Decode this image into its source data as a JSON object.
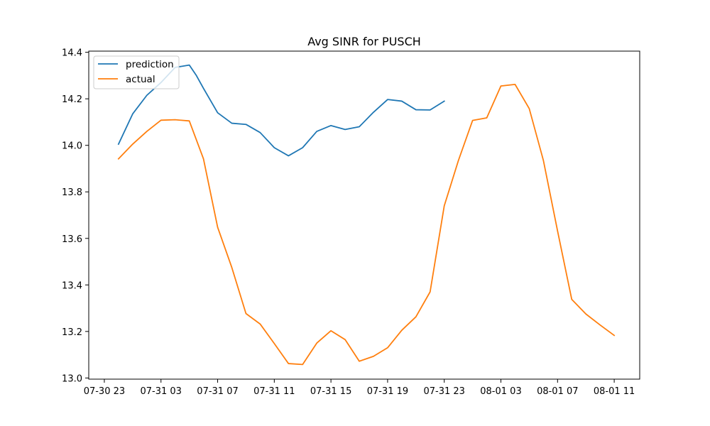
{
  "chart_data": {
    "type": "line",
    "title": "Avg SINR for PUSCH",
    "xlabel": "",
    "ylabel": "",
    "x_unit": "hours",
    "x_start": "2023-07-30 23:00",
    "x_ticks": [
      {
        "value": 0,
        "label": "07-30 23"
      },
      {
        "value": 4,
        "label": "07-31 03"
      },
      {
        "value": 8,
        "label": "07-31 07"
      },
      {
        "value": 12,
        "label": "07-31 11"
      },
      {
        "value": 16,
        "label": "07-31 15"
      },
      {
        "value": 20,
        "label": "07-31 19"
      },
      {
        "value": 24,
        "label": "07-31 23"
      },
      {
        "value": 28,
        "label": "08-01 03"
      },
      {
        "value": 32,
        "label": "08-01 07"
      },
      {
        "value": 36,
        "label": "08-01 11"
      }
    ],
    "y_ticks": [
      {
        "value": 13.0,
        "label": "13.0"
      },
      {
        "value": 13.2,
        "label": "13.2"
      },
      {
        "value": 13.4,
        "label": "13.4"
      },
      {
        "value": 13.6,
        "label": "13.6"
      },
      {
        "value": 13.8,
        "label": "13.8"
      },
      {
        "value": 14.0,
        "label": "14.0"
      },
      {
        "value": 14.2,
        "label": "14.2"
      },
      {
        "value": 14.4,
        "label": "14.4"
      }
    ],
    "ylim": [
      12.995,
      14.405
    ],
    "grid": false,
    "legend": "top-left",
    "series": [
      {
        "name": "prediction",
        "color": "#1f77b4",
        "points": [
          [
            1,
            14.005
          ],
          [
            2,
            14.135
          ],
          [
            3,
            14.215
          ],
          [
            4,
            14.27
          ],
          [
            5,
            14.335
          ],
          [
            6,
            14.345
          ],
          [
            6.5,
            14.3
          ],
          [
            7,
            14.245
          ],
          [
            8,
            14.14
          ],
          [
            9,
            14.095
          ],
          [
            10,
            14.09
          ],
          [
            11,
            14.055
          ],
          [
            12,
            13.99
          ],
          [
            13,
            13.955
          ],
          [
            14,
            13.99
          ],
          [
            15,
            14.06
          ],
          [
            16,
            14.085
          ],
          [
            17,
            14.068
          ],
          [
            18,
            14.08
          ],
          [
            19,
            14.142
          ],
          [
            20,
            14.197
          ],
          [
            21,
            14.19
          ],
          [
            22,
            14.153
          ],
          [
            23,
            14.152
          ],
          [
            24,
            14.19
          ]
        ]
      },
      {
        "name": "actual",
        "color": "#ff7f0e",
        "points": [
          [
            1,
            13.942
          ],
          [
            2,
            14.005
          ],
          [
            3,
            14.06
          ],
          [
            4,
            14.108
          ],
          [
            5,
            14.11
          ],
          [
            6,
            14.105
          ],
          [
            7,
            13.942
          ],
          [
            8,
            13.648
          ],
          [
            9,
            13.475
          ],
          [
            10,
            13.277
          ],
          [
            11,
            13.232
          ],
          [
            12,
            13.148
          ],
          [
            13,
            13.062
          ],
          [
            14,
            13.058
          ],
          [
            15,
            13.15
          ],
          [
            16,
            13.203
          ],
          [
            17,
            13.165
          ],
          [
            18,
            13.072
          ],
          [
            19,
            13.093
          ],
          [
            20,
            13.13
          ],
          [
            21,
            13.205
          ],
          [
            22,
            13.263
          ],
          [
            23,
            13.37
          ],
          [
            24,
            13.74
          ],
          [
            25,
            13.935
          ],
          [
            26,
            14.107
          ],
          [
            27,
            14.118
          ],
          [
            28,
            14.255
          ],
          [
            29,
            14.262
          ],
          [
            30,
            14.158
          ],
          [
            31,
            13.935
          ],
          [
            32,
            13.632
          ],
          [
            33,
            13.338
          ],
          [
            34,
            13.275
          ],
          [
            35,
            13.228
          ],
          [
            36,
            13.183
          ]
        ]
      }
    ]
  }
}
